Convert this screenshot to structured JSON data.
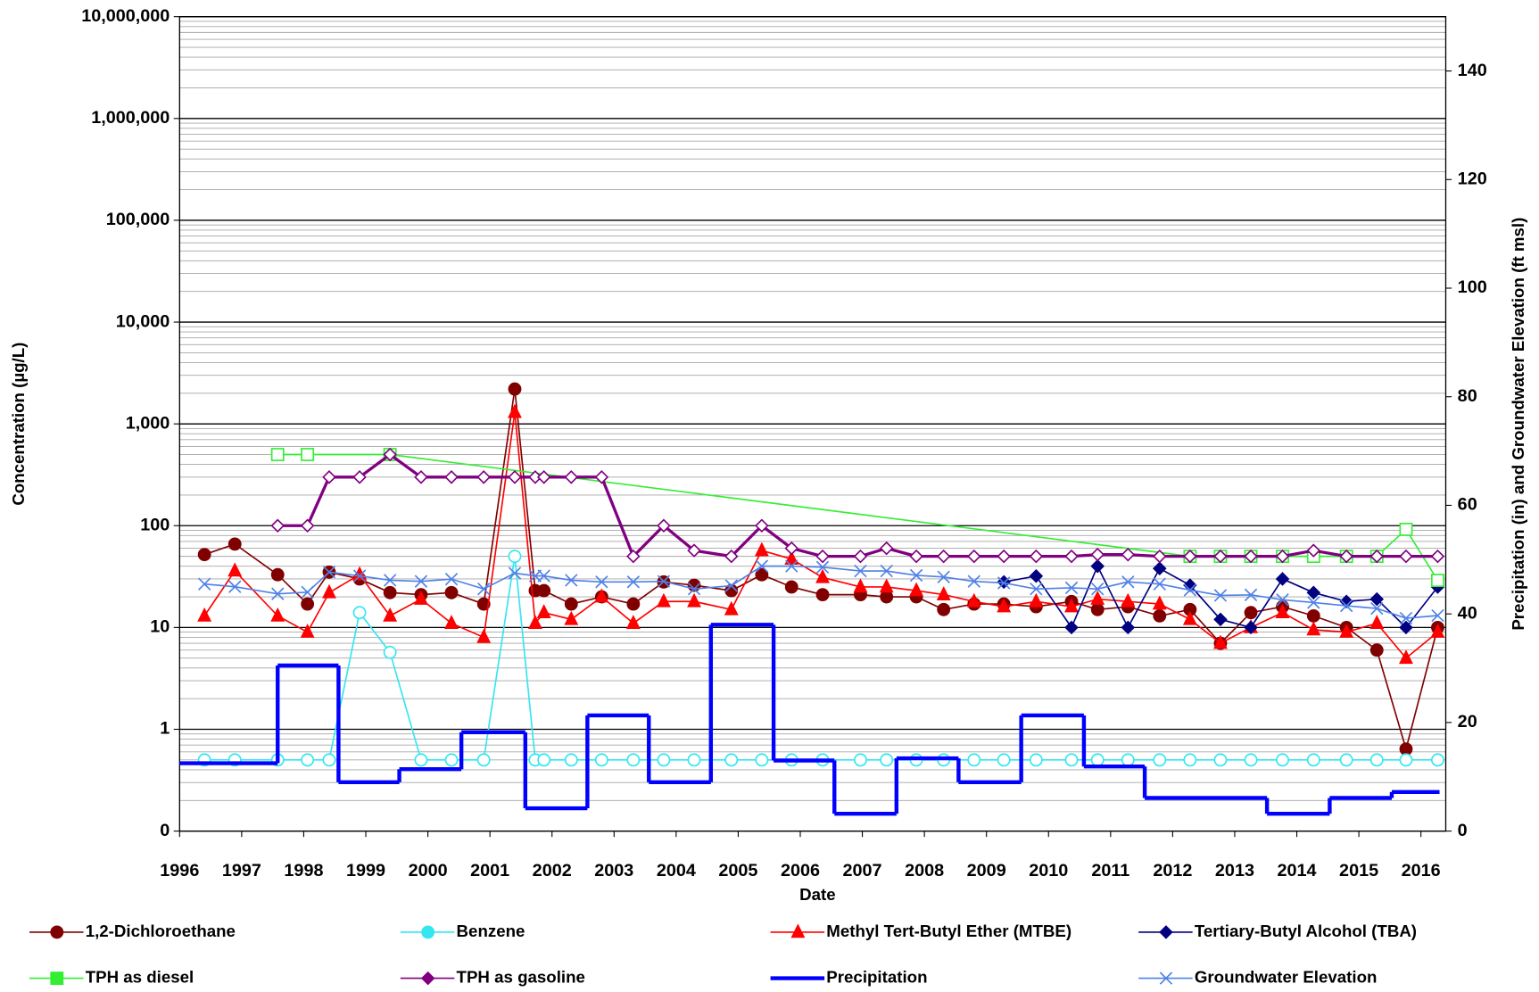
{
  "chart_data": {
    "type": "line",
    "xlabel": "Date",
    "ylabel": "Concentration (µg/L)",
    "y2label": "Precipitation (in) and Groundwater Elevation (ft msl)",
    "log_y": true,
    "grid": true,
    "xlim": [
      1996,
      2016.4
    ],
    "xticks": [
      1996,
      1997,
      1998,
      1999,
      2000,
      2001,
      2002,
      2003,
      2004,
      2005,
      2006,
      2007,
      2008,
      2009,
      2010,
      2011,
      2012,
      2013,
      2014,
      2015,
      2016
    ],
    "ylim": [
      0.1,
      10000000
    ],
    "yticks": [
      {
        "value": 0.1,
        "label": "0"
      },
      1,
      10,
      100,
      {
        "value": 1000,
        "label": "1,000"
      },
      {
        "value": 10000,
        "label": "10,000"
      },
      {
        "value": 100000,
        "label": "100,000"
      },
      {
        "value": 1000000,
        "label": "1,000,000"
      },
      {
        "value": 10000000,
        "label": "10,000,000"
      }
    ],
    "y2lim": [
      0,
      150
    ],
    "y2ticks": [
      0,
      20,
      40,
      60,
      80,
      100,
      120,
      140
    ],
    "legend": "bottom",
    "series": [
      {
        "name": "1,2-Dichloroethane",
        "color": "#800000",
        "marker": "circle",
        "filled": true,
        "line_width": 1.5,
        "x": [
          1996.4,
          1996.89,
          1997.58,
          1998.06,
          1998.41,
          1998.9,
          1999.39,
          1999.89,
          2000.38,
          2000.9,
          2001.4,
          2001.73,
          2001.87,
          2002.31,
          2002.8,
          2003.31,
          2003.8,
          2004.29,
          2004.89,
          2005.38,
          2005.86,
          2006.36,
          2006.97,
          2007.39,
          2007.87,
          2008.31,
          2008.8,
          2009.28,
          2009.8,
          2010.37,
          2010.79,
          2011.28,
          2011.79,
          2012.28,
          2012.77,
          2013.26,
          2013.77,
          2014.27,
          2014.8,
          2015.29,
          2015.76,
          2016.27
        ],
        "values": [
          52,
          66,
          33,
          17,
          35,
          30,
          22,
          21,
          22,
          17,
          2200,
          23,
          23,
          17,
          20,
          17,
          28,
          26,
          23,
          33,
          25,
          21,
          21,
          20,
          20,
          15,
          17,
          17,
          16,
          18,
          15,
          16,
          13,
          15,
          7,
          14,
          16,
          13,
          10,
          6,
          0.64,
          10
        ]
      },
      {
        "name": "Benzene",
        "color": "#33e6f0",
        "marker": "circle",
        "filled": false,
        "line_width": 1.5,
        "x": [
          1996.4,
          1996.89,
          1997.58,
          1998.06,
          1998.41,
          1998.9,
          1999.39,
          1999.89,
          2000.38,
          2000.9,
          2001.4,
          2001.73,
          2001.87,
          2002.31,
          2002.8,
          2003.31,
          2003.8,
          2004.29,
          2004.89,
          2005.38,
          2005.86,
          2006.36,
          2006.97,
          2007.39,
          2007.87,
          2008.31,
          2008.8,
          2009.28,
          2009.8,
          2010.37,
          2010.79,
          2011.28,
          2011.79,
          2012.28,
          2012.77,
          2013.26,
          2013.77,
          2014.27,
          2014.8,
          2015.29,
          2015.76,
          2016.27
        ],
        "values": [
          0.5,
          0.5,
          0.5,
          0.5,
          0.5,
          14,
          5.7,
          0.5,
          0.5,
          0.5,
          50,
          0.5,
          0.5,
          0.5,
          0.5,
          0.5,
          0.5,
          0.5,
          0.5,
          0.5,
          0.5,
          0.5,
          0.5,
          0.5,
          0.5,
          0.5,
          0.5,
          0.5,
          0.5,
          0.5,
          0.5,
          0.5,
          0.5,
          0.5,
          0.5,
          0.5,
          0.5,
          0.5,
          0.5,
          0.5,
          0.5,
          0.5
        ]
      },
      {
        "name": "Methyl Tert-Butyl Ether (MTBE)",
        "color": "#ff0000",
        "marker": "triangle",
        "filled": true,
        "line_width": 1.5,
        "x": [
          1996.4,
          1996.89,
          1997.58,
          1998.06,
          1998.41,
          1998.9,
          1999.39,
          1999.89,
          2000.38,
          2000.9,
          2001.4,
          2001.73,
          2001.87,
          2002.31,
          2002.8,
          2003.31,
          2003.8,
          2004.29,
          2004.89,
          2005.38,
          2005.86,
          2006.36,
          2006.97,
          2007.39,
          2007.87,
          2008.31,
          2008.8,
          2009.28,
          2009.8,
          2010.37,
          2010.79,
          2011.28,
          2011.79,
          2012.28,
          2012.77,
          2013.26,
          2013.77,
          2014.27,
          2014.8,
          2015.29,
          2015.76,
          2016.27
        ],
        "values": [
          13,
          36,
          13,
          9,
          22,
          33,
          13,
          19,
          11,
          8,
          1300,
          11,
          14,
          12,
          20,
          11,
          18,
          18,
          15,
          57,
          47,
          31,
          25,
          25,
          23,
          21,
          18,
          16,
          18,
          16,
          19,
          18,
          17,
          12,
          7,
          10,
          14,
          9.5,
          9,
          11,
          5,
          9
        ]
      },
      {
        "name": "Tertiary-Butyl Alcohol (TBA)",
        "color": "#000080",
        "marker": "diamond",
        "filled": true,
        "line_width": 1.5,
        "x": [
          2009.28,
          2009.8,
          2010.37,
          2010.79,
          2011.28,
          2011.79,
          2012.28,
          2012.77,
          2013.26,
          2013.77,
          2014.27,
          2014.8,
          2015.29,
          2015.76,
          2016.27
        ],
        "values": [
          28,
          32,
          10,
          40,
          10,
          38,
          26,
          12,
          10,
          30,
          22,
          18,
          19,
          10,
          25
        ]
      },
      {
        "name": "TPH as diesel",
        "color": "#33ee33",
        "marker": "square",
        "filled": false,
        "line_width": 1.5,
        "x": [
          1997.58,
          1998.06,
          1999.39,
          2012.28,
          2012.77,
          2013.26,
          2013.77,
          2014.27,
          2014.8,
          2015.29,
          2015.76,
          2016.27
        ],
        "values": [
          500,
          500,
          500,
          50,
          50,
          50,
          50,
          50,
          50,
          50,
          92,
          29
        ]
      },
      {
        "name": "TPH as gasoline",
        "color": "#800080",
        "marker": "diamond",
        "filled": false,
        "line_width": 3,
        "x": [
          1997.58,
          1998.06,
          1998.41,
          1998.9,
          1999.39,
          1999.89,
          2000.38,
          2000.9,
          2001.4,
          2001.73,
          2001.87,
          2002.31,
          2002.8,
          2003.31,
          2003.8,
          2004.29,
          2004.89,
          2005.38,
          2005.86,
          2006.36,
          2006.97,
          2007.39,
          2007.87,
          2008.31,
          2008.8,
          2009.28,
          2009.8,
          2010.37,
          2010.79,
          2011.28,
          2011.79,
          2012.28,
          2012.77,
          2013.26,
          2013.77,
          2014.27,
          2014.8,
          2015.29,
          2015.76,
          2016.27
        ],
        "values": [
          100,
          100,
          300,
          300,
          500,
          300,
          300,
          300,
          300,
          300,
          300,
          300,
          300,
          50,
          100,
          57,
          50,
          100,
          60,
          50,
          50,
          60,
          50,
          50,
          50,
          50,
          50,
          50,
          52,
          52,
          50,
          50,
          50,
          50,
          50,
          57,
          50,
          50,
          50,
          50
        ]
      },
      {
        "name": "Precipitation",
        "color": "#0000ff",
        "style": "step",
        "axis": "y2",
        "line_width": 4,
        "bins": [
          1996,
          1997.58,
          1998.56,
          1999.54,
          2000.54,
          2001.57,
          2002.57,
          2003.56,
          2004.56,
          2005.57,
          2006.55,
          2007.55,
          2008.55,
          2009.56,
          2010.57,
          2011.55,
          2013.52,
          2014.53,
          2015.53,
          2016.3
        ],
        "values": [
          12.5,
          30.5,
          9,
          11.4,
          18.2,
          4.2,
          21.3,
          9,
          38,
          13,
          3.2,
          13.4,
          9,
          21.3,
          11.9,
          6.1,
          3.2,
          6.1,
          7.2
        ]
      },
      {
        "name": "Groundwater Elevation",
        "color": "#4f81e6",
        "marker": "x",
        "axis": "y2",
        "line_width": 1.5,
        "x": [
          1996.4,
          1996.89,
          1997.58,
          1998.06,
          1998.41,
          1998.9,
          1999.39,
          1999.89,
          2000.38,
          2000.9,
          2001.4,
          2001.73,
          2001.87,
          2002.31,
          2002.8,
          2003.31,
          2003.8,
          2004.29,
          2004.89,
          2005.38,
          2005.86,
          2006.36,
          2006.97,
          2007.39,
          2007.87,
          2008.31,
          2008.8,
          2009.28,
          2009.8,
          2010.37,
          2010.79,
          2011.28,
          2011.79,
          2012.28,
          2012.77,
          2013.26,
          2013.77,
          2014.27,
          2014.8,
          2015.29,
          2015.76,
          2016.27
        ],
        "values": [
          45.5,
          45,
          43.7,
          44,
          47.7,
          47,
          46.2,
          46,
          46.4,
          44.6,
          47.5,
          47,
          47,
          46.2,
          45.9,
          45.9,
          46,
          44.6,
          45.2,
          48.8,
          48.8,
          48.6,
          47.9,
          47.9,
          47.1,
          46.8,
          46,
          45.7,
          44.6,
          44.8,
          44.6,
          45.9,
          45.5,
          44.4,
          43.4,
          43.5,
          42.6,
          42.1,
          41.5,
          41,
          39.2,
          39.7
        ]
      }
    ]
  }
}
